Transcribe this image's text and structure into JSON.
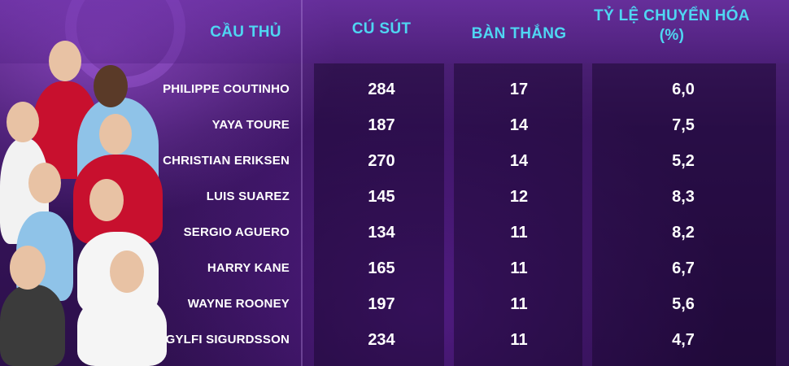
{
  "headers": {
    "player": "CẦU THỦ",
    "shots": "CÚ SÚT",
    "goals": "BÀN THẮNG",
    "rate_line1": "TỶ LỆ CHUYỂN HÓA",
    "rate_line2": "(%)"
  },
  "rows": [
    {
      "name": "PHILIPPE COUTINHO",
      "shots": "284",
      "goals": "17",
      "rate": "6,0"
    },
    {
      "name": "YAYA TOURE",
      "shots": "187",
      "goals": "14",
      "rate": "7,5"
    },
    {
      "name": "CHRISTIAN ERIKSEN",
      "shots": "270",
      "goals": "14",
      "rate": "5,2"
    },
    {
      "name": "LUIS SUAREZ",
      "shots": "145",
      "goals": "12",
      "rate": "8,3"
    },
    {
      "name": "SERGIO AGUERO",
      "shots": "134",
      "goals": "11",
      "rate": "8,2"
    },
    {
      "name": "HARRY KANE",
      "shots": "165",
      "goals": "11",
      "rate": "6,7"
    },
    {
      "name": "WAYNE ROONEY",
      "shots": "197",
      "goals": "11",
      "rate": "5,6"
    },
    {
      "name": "GYLFI SIGURDSSON",
      "shots": "234",
      "goals": "11",
      "rate": "4,7"
    }
  ],
  "colors": {
    "header_text": "#4fd6f2",
    "value_text": "#ffffff",
    "background": "#2a0f45"
  }
}
